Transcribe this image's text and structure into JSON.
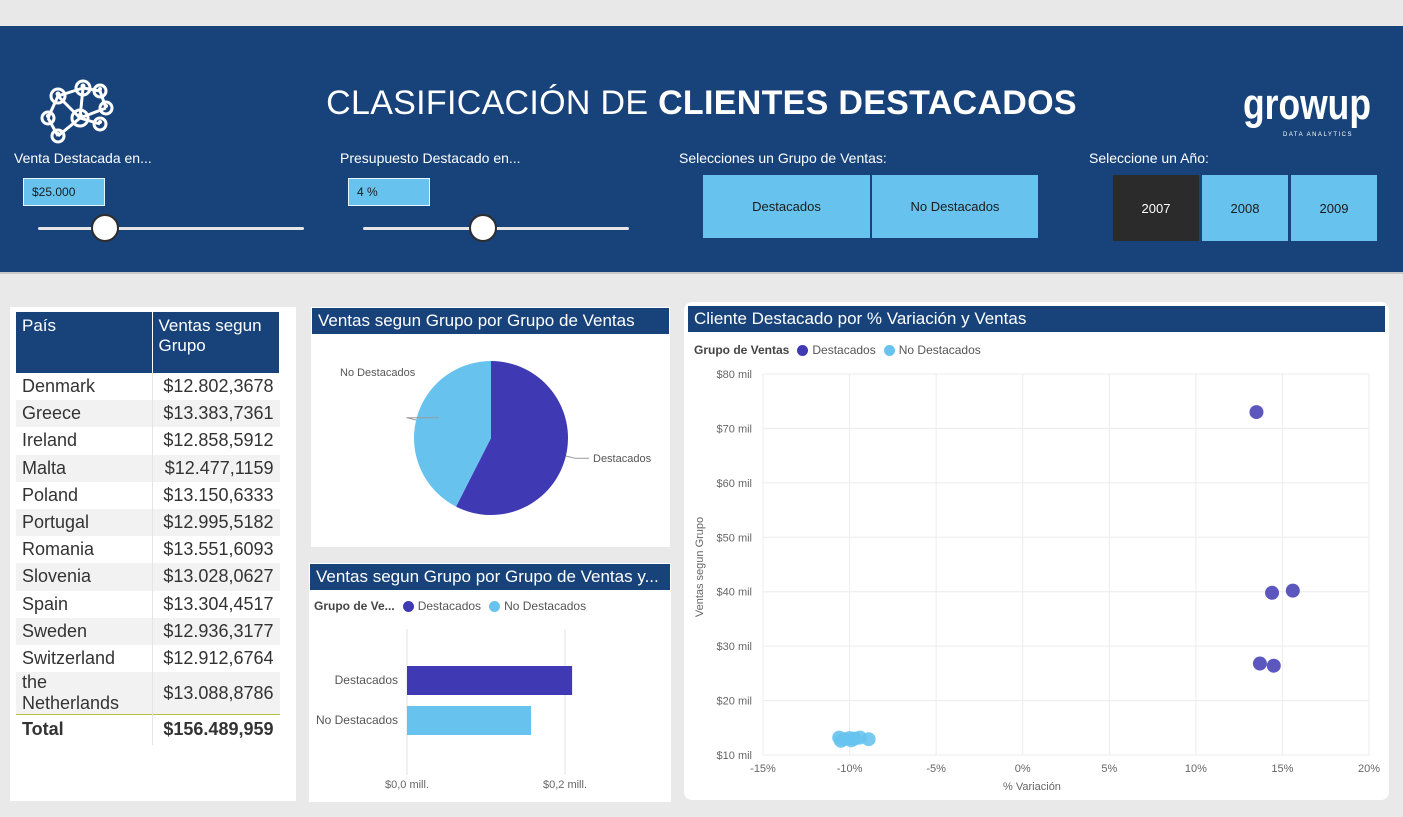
{
  "header": {
    "title_light": "CLASIFICACIÓN DE ",
    "title_bold": "CLIENTES DESTACADOS",
    "brand": "growup",
    "brand_sub": "DATA ANALYTICS",
    "logo_icon": "network-people-icon"
  },
  "controls": {
    "venta": {
      "label": "Venta Destacada en...",
      "value": "$25.000",
      "level": 0.25
    },
    "presupuesto": {
      "label": "Presupuesto Destacado en...",
      "value": "4 %",
      "level": 0.45
    },
    "grupo": {
      "label": "Selecciones un Grupo de Ventas:",
      "options": [
        "Destacados",
        "No Destacados"
      ]
    },
    "anio": {
      "label": "Seleccione un Año:",
      "options": [
        "2007",
        "2008",
        "2009"
      ],
      "selected": "2007"
    }
  },
  "table": {
    "headers": [
      "País",
      "Ventas segun Grupo"
    ],
    "rows": [
      [
        "Denmark",
        "$12.802,3678"
      ],
      [
        "Greece",
        "$13.383,7361"
      ],
      [
        "Ireland",
        "$12.858,5912"
      ],
      [
        "Malta",
        "$12.477,1159"
      ],
      [
        "Poland",
        "$13.150,6333"
      ],
      [
        "Portugal",
        "$12.995,5182"
      ],
      [
        "Romania",
        "$13.551,6093"
      ],
      [
        "Slovenia",
        "$13.028,0627"
      ],
      [
        "Spain",
        "$13.304,4517"
      ],
      [
        "Sweden",
        "$12.936,3177"
      ],
      [
        "Switzerland",
        "$12.912,6764"
      ],
      [
        "the Netherlands",
        "$13.088,8786"
      ]
    ],
    "total_label": "Total",
    "total_value": "$156.489,959"
  },
  "colors": {
    "destacados": "#3f3ab3",
    "no_destacados": "#67c3ee",
    "header_bg": "#17427a"
  },
  "pie": {
    "title": "Ventas segun Grupo por Grupo de Ventas",
    "labels": {
      "destacados": "Destacados",
      "no_destacados": "No Destacados"
    }
  },
  "bar": {
    "title": "Ventas segun Grupo por Grupo de Ventas y...",
    "legend_title": "Grupo de Ve...",
    "legend": [
      "Destacados",
      "No Destacados"
    ],
    "xticks": [
      "$0,0 mill.",
      "$0,2 mill."
    ]
  },
  "scatter": {
    "title": "Cliente Destacado por % Variación y Ventas",
    "legend_title": "Grupo de Ventas",
    "legend": [
      "Destacados",
      "No Destacados"
    ],
    "xlabel": "% Variación",
    "ylabel": "Ventas segun Grupo",
    "xticks": [
      "-15%",
      "-10%",
      "-5%",
      "0%",
      "5%",
      "10%",
      "15%",
      "20%"
    ],
    "yticks": [
      "$10 mil",
      "$20 mil",
      "$30 mil",
      "$40 mil",
      "$50 mil",
      "$60 mil",
      "$70 mil",
      "$80 mil"
    ]
  },
  "chart_data": [
    {
      "type": "pie",
      "title": "Ventas segun Grupo por Grupo de Ventas",
      "categories": [
        "Destacados",
        "No Destacados"
      ],
      "values": [
        57.5,
        42.5
      ],
      "unit": "percent of total"
    },
    {
      "type": "bar",
      "orientation": "horizontal",
      "title": "Ventas segun Grupo por Grupo de Ventas y...",
      "categories": [
        "Destacados",
        "No Destacados"
      ],
      "values": [
        0.209,
        0.157
      ],
      "xlim": [
        0,
        0.25
      ],
      "unit": "mill."
    },
    {
      "type": "scatter",
      "title": "Cliente Destacado por % Variación y Ventas",
      "xlabel": "% Variación",
      "ylabel": "Ventas segun Grupo",
      "xlim": [
        -15,
        20
      ],
      "ylim": [
        10000,
        80000
      ],
      "grid": true,
      "legend_position": "top-left",
      "series": [
        {
          "name": "Destacados",
          "x": [
            13.5,
            14.4,
            15.6,
            13.7,
            14.5
          ],
          "y": [
            73000,
            39800,
            40200,
            26800,
            26400
          ]
        },
        {
          "name": "No Destacados",
          "x": [
            -10.6,
            -10.3,
            -10.0,
            -9.9,
            -9.7,
            -9.4,
            -8.9,
            -10.5
          ],
          "y": [
            13200,
            12900,
            13100,
            12700,
            13000,
            13200,
            12900,
            12600
          ]
        }
      ]
    }
  ]
}
